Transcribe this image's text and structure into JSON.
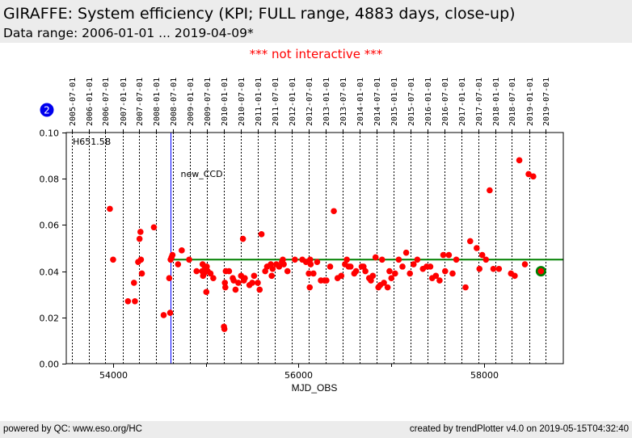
{
  "header": {
    "title": "GIRAFFE: System efficiency (KPI; FULL range, 4883 days, close-up)",
    "subtitle": "Data range: 2006-01-01 ... 2019-04-09*"
  },
  "notice": "*** not interactive ***",
  "badge": {
    "label": "2",
    "color": "#0000ee"
  },
  "footer": {
    "left": "powered by QC: www.eso.org/HC",
    "right": "created by trendPlotter v4.0 on 2019-05-15T04:32:40"
  },
  "chart_data": {
    "type": "scatter",
    "title": "",
    "xlabel": "MJD_OBS",
    "ylabel": "",
    "xlim": [
      53495,
      58854
    ],
    "ylim": [
      0.0,
      0.1
    ],
    "x_ticks": [
      54000,
      56000,
      58000
    ],
    "x_tick_labels": [
      "54000",
      "56000",
      "58000"
    ],
    "x_minor_ticks": [
      55000,
      57000
    ],
    "y_ticks": [
      0.0,
      0.02,
      0.04,
      0.06,
      0.08,
      0.1
    ],
    "y_tick_labels": [
      "0.00",
      "0.02",
      "0.04",
      "0.06",
      "0.08",
      "0.10"
    ],
    "date_grid": [
      {
        "label": "2005-07-01",
        "mjd": 53552
      },
      {
        "label": "2006-01-01",
        "mjd": 53736
      },
      {
        "label": "2006-07-01",
        "mjd": 53917
      },
      {
        "label": "2007-01-01",
        "mjd": 54101
      },
      {
        "label": "2007-07-01",
        "mjd": 54282
      },
      {
        "label": "2008-01-01",
        "mjd": 54466
      },
      {
        "label": "2008-07-01",
        "mjd": 54648
      },
      {
        "label": "2009-01-01",
        "mjd": 54832
      },
      {
        "label": "2009-07-01",
        "mjd": 55013
      },
      {
        "label": "2010-01-01",
        "mjd": 55197
      },
      {
        "label": "2010-07-01",
        "mjd": 55378
      },
      {
        "label": "2011-01-01",
        "mjd": 55562
      },
      {
        "label": "2011-07-01",
        "mjd": 55743
      },
      {
        "label": "2012-01-01",
        "mjd": 55927
      },
      {
        "label": "2012-07-01",
        "mjd": 56109
      },
      {
        "label": "2013-01-01",
        "mjd": 56293
      },
      {
        "label": "2013-07-01",
        "mjd": 56474
      },
      {
        "label": "2014-01-01",
        "mjd": 56658
      },
      {
        "label": "2014-07-01",
        "mjd": 56839
      },
      {
        "label": "2015-01-01",
        "mjd": 57023
      },
      {
        "label": "2015-07-01",
        "mjd": 57204
      },
      {
        "label": "2016-01-01",
        "mjd": 57388
      },
      {
        "label": "2016-07-01",
        "mjd": 57570
      },
      {
        "label": "2017-01-01",
        "mjd": 57754
      },
      {
        "label": "2017-07-01",
        "mjd": 57935
      },
      {
        "label": "2018-01-01",
        "mjd": 58119
      },
      {
        "label": "2018-07-01",
        "mjd": 58300
      },
      {
        "label": "2019-01-01",
        "mjd": 58484
      },
      {
        "label": "2019-07-01",
        "mjd": 58665
      }
    ],
    "annotations": [
      {
        "text": "H651.5B",
        "position": "top-left"
      },
      {
        "text": "new_CCD",
        "mjd": 54620,
        "color": "#0000ff"
      }
    ],
    "reference_line": {
      "y": 0.045,
      "from_mjd": 54620,
      "to_mjd": 58854,
      "color": "#008000"
    },
    "last_point": {
      "x": 58613,
      "y": 0.04,
      "ring_color": "#008000"
    },
    "series": [
      {
        "name": "efficiency",
        "color": "#ff0000",
        "x": [
          53965,
          54000,
          54160,
          54225,
          54235,
          54270,
          54285,
          54295,
          54300,
          54310,
          54440,
          54545,
          54605,
          54615,
          54620,
          54630,
          54640,
          54700,
          54740,
          54820,
          54900,
          54960,
          54965,
          54970,
          54980,
          54990,
          55000,
          55005,
          55010,
          55020,
          55050,
          55080,
          55195,
          55200,
          55205,
          55210,
          55215,
          55250,
          55290,
          55300,
          55320,
          55350,
          55380,
          55400,
          55410,
          55420,
          55470,
          55500,
          55520,
          55560,
          55580,
          55600,
          55640,
          55660,
          55700,
          55710,
          55720,
          55760,
          55790,
          55820,
          55830,
          55840,
          55880,
          55960,
          56040,
          56080,
          56110,
          56120,
          56125,
          56130,
          56160,
          56200,
          56240,
          56280,
          56300,
          56340,
          56380,
          56420,
          56460,
          56500,
          56520,
          56540,
          56560,
          56600,
          56620,
          56680,
          56700,
          56720,
          56760,
          56780,
          56800,
          56830,
          56860,
          56880,
          56900,
          56920,
          56960,
          56980,
          57000,
          57040,
          57080,
          57120,
          57160,
          57200,
          57240,
          57280,
          57340,
          57380,
          57420,
          57440,
          57480,
          57520,
          57560,
          57580,
          57620,
          57660,
          57700,
          57800,
          57850,
          57920,
          57950,
          57980,
          58020,
          58060,
          58100,
          58160,
          58290,
          58330,
          58380,
          58440,
          58480,
          58530
        ],
        "y": [
          0.067,
          0.045,
          0.027,
          0.035,
          0.027,
          0.044,
          0.054,
          0.057,
          0.045,
          0.039,
          0.059,
          0.021,
          0.037,
          0.022,
          0.045,
          0.046,
          0.047,
          0.043,
          0.049,
          0.045,
          0.04,
          0.04,
          0.043,
          0.038,
          0.039,
          0.042,
          0.041,
          0.031,
          0.042,
          0.04,
          0.039,
          0.037,
          0.016,
          0.015,
          0.035,
          0.033,
          0.04,
          0.04,
          0.037,
          0.036,
          0.032,
          0.035,
          0.038,
          0.054,
          0.036,
          0.037,
          0.034,
          0.035,
          0.038,
          0.035,
          0.032,
          0.056,
          0.04,
          0.042,
          0.043,
          0.038,
          0.041,
          0.043,
          0.042,
          0.044,
          0.045,
          0.043,
          0.04,
          0.045,
          0.045,
          0.044,
          0.039,
          0.033,
          0.045,
          0.043,
          0.039,
          0.044,
          0.036,
          0.036,
          0.036,
          0.042,
          0.066,
          0.037,
          0.038,
          0.043,
          0.045,
          0.042,
          0.042,
          0.039,
          0.04,
          0.042,
          0.042,
          0.04,
          0.037,
          0.036,
          0.038,
          0.046,
          0.033,
          0.034,
          0.045,
          0.035,
          0.033,
          0.04,
          0.037,
          0.039,
          0.045,
          0.042,
          0.048,
          0.039,
          0.043,
          0.045,
          0.041,
          0.042,
          0.042,
          0.037,
          0.038,
          0.036,
          0.047,
          0.04,
          0.047,
          0.039,
          0.045,
          0.033,
          0.053,
          0.05,
          0.041,
          0.047,
          0.045,
          0.075,
          0.041,
          0.041,
          0.039,
          0.038,
          0.088,
          0.043,
          0.082,
          0.081
        ]
      }
    ]
  }
}
